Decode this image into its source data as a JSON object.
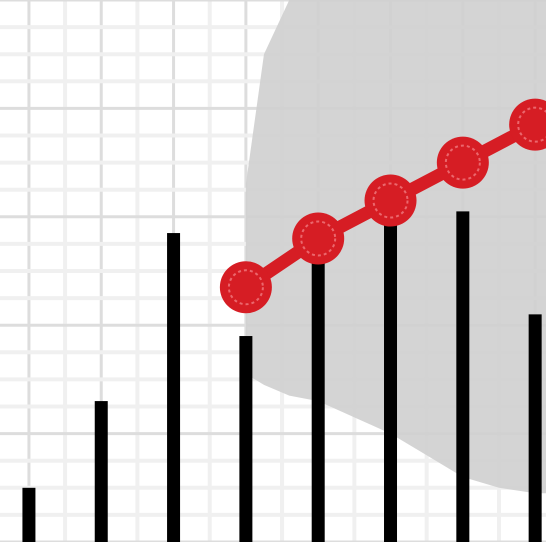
{
  "chart_data": {
    "type": "line",
    "title": "",
    "xlabel": "",
    "ylabel": "",
    "grid": true,
    "x": [
      1,
      2,
      3,
      4,
      5,
      6,
      7,
      8
    ],
    "xlim": [
      0.6,
      8.15
    ],
    "ylim": [
      0,
      1
    ],
    "series": [
      {
        "kind": "stem",
        "x": [
          1,
          2,
          3,
          4,
          5,
          6,
          7,
          8
        ],
        "values": [
          0.1,
          0.26,
          0.57,
          0.38,
          0.59,
          0.59,
          0.61,
          0.42
        ],
        "color": "#000000"
      },
      {
        "kind": "line",
        "x": [
          4,
          5,
          6,
          7,
          8
        ],
        "values": [
          0.47,
          0.56,
          0.63,
          0.7,
          0.77
        ],
        "color": "#d61d24"
      },
      {
        "kind": "band",
        "x": [
          4,
          4.25,
          4.6,
          5,
          5.5,
          6,
          6.5,
          7,
          7.5,
          8,
          8.15
        ],
        "upper": [
          0.66,
          0.9,
          1.0,
          1.0,
          1.0,
          1.0,
          1.0,
          1.0,
          1.0,
          1.0,
          1.0
        ],
        "lower": [
          0.31,
          0.29,
          0.27,
          0.26,
          0.23,
          0.2,
          0.16,
          0.12,
          0.1,
          0.09,
          0.09
        ],
        "color": "#cfcfcf"
      }
    ]
  }
}
